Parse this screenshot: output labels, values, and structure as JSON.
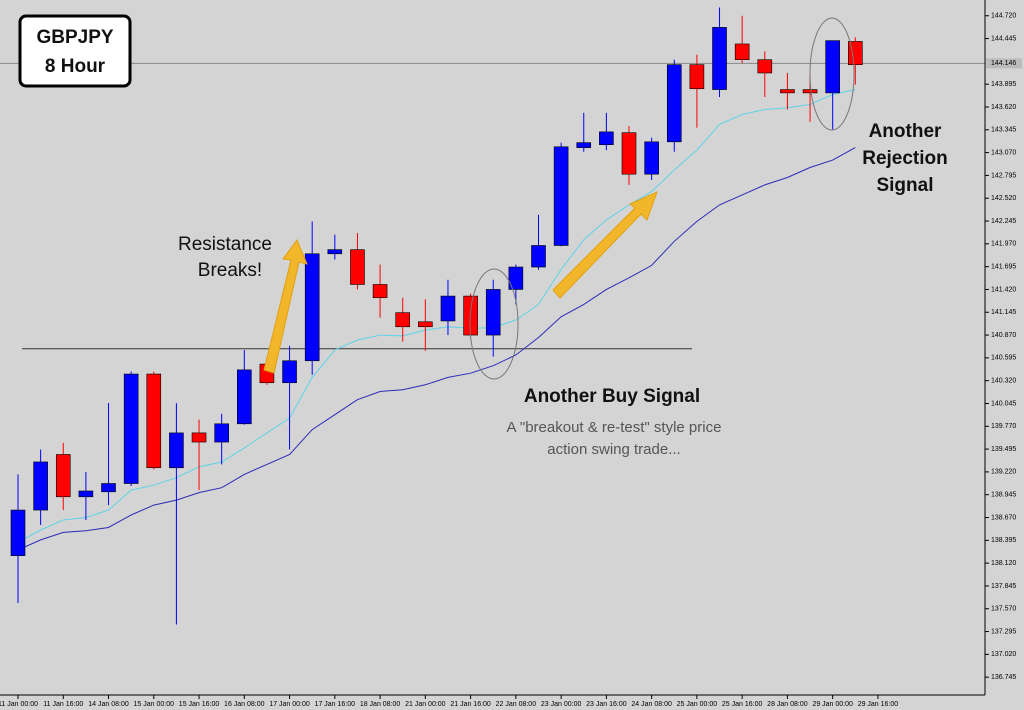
{
  "chart_data": {
    "type": "candlestick",
    "title": [
      "GBPJPY",
      "8 Hour"
    ],
    "categories": [
      "11 Jan 00:00",
      null,
      "11 Jan 16:00",
      null,
      "14 Jan 08:00",
      null,
      "15 Jan 00:00",
      null,
      "15 Jan 16:00",
      null,
      "16 Jan 08:00",
      null,
      "17 Jan 00:00",
      null,
      "17 Jan 16:00",
      null,
      "18 Jan 08:00",
      null,
      "21 Jan 00:00",
      null,
      "21 Jan 16:00",
      null,
      "22 Jan 08:00",
      null,
      "23 Jan 00:00",
      null,
      "23 Jan 16:00",
      null,
      "24 Jan 08:00",
      null,
      "25 Jan 00:00",
      null,
      "25 Jan 16:00",
      null,
      "28 Jan 08:00",
      null,
      "29 Jan 00:00",
      null,
      "29 Jan 16:00"
    ],
    "open": [
      138.21,
      138.76,
      139.43,
      138.92,
      138.98,
      139.08,
      140.4,
      139.27,
      139.69,
      139.58,
      139.8,
      140.52,
      140.295,
      140.56,
      141.85,
      141.9,
      141.48,
      141.14,
      141.03,
      141.04,
      141.34,
      140.87,
      141.42,
      141.69,
      141.95,
      143.13,
      143.165,
      143.31,
      142.81,
      143.2,
      144.13,
      143.83,
      144.38,
      144.19,
      143.83,
      143.83,
      143.79,
      144.41,
      null
    ],
    "high": [
      139.19,
      139.49,
      139.57,
      139.22,
      140.05,
      140.43,
      140.43,
      140.05,
      139.85,
      139.92,
      140.69,
      140.6,
      140.74,
      142.24,
      142.08,
      142.1,
      141.72,
      141.32,
      141.3,
      141.537,
      141.37,
      141.537,
      141.72,
      142.32,
      143.19,
      143.55,
      143.55,
      143.39,
      143.25,
      144.19,
      144.25,
      144.82,
      144.72,
      144.29,
      144.03,
      144.01,
      144.42,
      144.46,
      null
    ],
    "low": [
      137.64,
      138.58,
      138.76,
      138.64,
      138.82,
      139.05,
      139.25,
      137.38,
      139.0,
      139.31,
      139.79,
      140.27,
      139.49,
      140.39,
      141.78,
      141.42,
      141.08,
      140.79,
      140.68,
      140.87,
      140.85,
      140.61,
      141.24,
      141.657,
      141.94,
      143.08,
      143.1,
      142.68,
      142.74,
      143.08,
      143.37,
      143.74,
      144.15,
      143.74,
      143.59,
      143.44,
      143.35,
      143.89,
      null
    ],
    "close": [
      138.76,
      139.34,
      138.92,
      138.99,
      139.08,
      140.4,
      139.27,
      139.69,
      139.58,
      139.8,
      140.45,
      140.295,
      140.56,
      141.85,
      141.9,
      141.48,
      141.32,
      140.97,
      140.97,
      141.34,
      140.87,
      141.42,
      141.69,
      141.95,
      143.14,
      143.19,
      143.32,
      142.81,
      143.2,
      144.13,
      143.84,
      144.58,
      144.19,
      144.03,
      143.79,
      143.79,
      144.42,
      144.13,
      null
    ],
    "up_color": "#0000ff",
    "down_color": "#ff0000",
    "series": [
      {
        "type": "line",
        "color": "#5fd3e8",
        "values": [
          138.37,
          138.52,
          138.64,
          138.67,
          138.76,
          139.0,
          139.06,
          139.15,
          139.28,
          139.34,
          139.51,
          139.69,
          139.87,
          140.36,
          140.69,
          140.81,
          140.87,
          140.86,
          140.93,
          140.97,
          140.95,
          140.96,
          141.05,
          141.24,
          141.66,
          142.02,
          142.26,
          142.44,
          142.6,
          142.86,
          143.1,
          143.41,
          143.53,
          143.59,
          143.61,
          143.65,
          143.77,
          143.83,
          null
        ]
      },
      {
        "type": "line",
        "color": "#2a2ab8",
        "values": [
          138.28,
          138.4,
          138.49,
          138.51,
          138.55,
          138.7,
          138.82,
          138.88,
          138.97,
          139.03,
          139.19,
          139.31,
          139.43,
          139.73,
          139.91,
          140.09,
          140.19,
          140.21,
          140.27,
          140.36,
          140.41,
          140.5,
          140.63,
          140.84,
          141.09,
          141.24,
          141.42,
          141.56,
          141.71,
          142.0,
          142.24,
          142.44,
          142.56,
          142.68,
          142.77,
          142.89,
          142.98,
          143.13,
          null
        ]
      }
    ],
    "support_level": 140.705,
    "current_price": 144.146,
    "ylim": [
      136.53,
      144.91
    ],
    "yticks": [
      {
        "value": 144.72,
        "label": "144.720"
      },
      144.445,
      143.895,
      {
        "value": 143.62,
        "label": "143.620"
      },
      143.345,
      {
        "value": 143.07,
        "label": "143.070"
      },
      142.795,
      {
        "value": 142.52,
        "label": "142.520"
      },
      142.245,
      {
        "value": 141.97,
        "label": "141.970"
      },
      141.695,
      {
        "value": 141.42,
        "label": "141.420"
      },
      141.145,
      {
        "value": 140.87,
        "label": "140.870"
      },
      140.595,
      {
        "value": 140.32,
        "label": "140.320"
      },
      140.045,
      {
        "value": 139.77,
        "label": "139.770"
      },
      139.495,
      {
        "value": 139.22,
        "label": "139.220"
      },
      138.945,
      {
        "value": 138.67,
        "label": "138.670"
      },
      138.395,
      {
        "value": 138.12,
        "label": "138.120"
      },
      137.845,
      {
        "value": 137.57,
        "label": "137.570"
      },
      137.295,
      {
        "value": 137.02,
        "label": "137.020"
      },
      136.745
    ],
    "annotations": {
      "resistance": [
        "Resistance",
        "Breaks!"
      ],
      "buy_signal": "Another Buy Signal",
      "buy_note": [
        "A \"breakout & re-test\" style price",
        "action swing trade..."
      ],
      "rejection": [
        "Another",
        "Rejection",
        "Signal"
      ]
    }
  }
}
